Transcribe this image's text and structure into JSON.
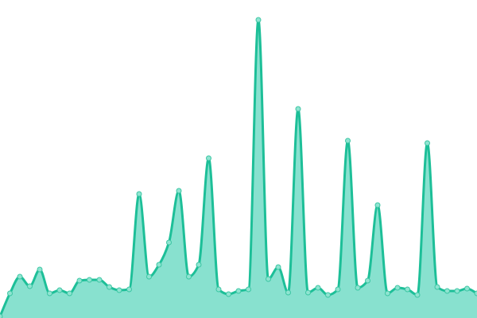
{
  "chart_data": {
    "type": "area",
    "x": [
      0,
      1,
      2,
      3,
      4,
      5,
      6,
      7,
      8,
      9,
      10,
      11,
      12,
      13,
      14,
      15,
      16,
      17,
      18,
      19,
      20,
      21,
      22,
      23,
      24,
      25,
      26,
      27,
      28,
      29,
      30,
      31,
      32,
      33,
      34,
      35,
      36,
      37,
      38,
      39,
      40,
      41,
      42,
      43,
      44,
      45,
      46,
      47,
      48
    ],
    "values": [
      2,
      31,
      52,
      40,
      61,
      31,
      35,
      31,
      47,
      48,
      48,
      39,
      35,
      36,
      156,
      52,
      67,
      95,
      160,
      52,
      67,
      201,
      36,
      30,
      34,
      36,
      375,
      49,
      64,
      32,
      263,
      32,
      38,
      29,
      36,
      223,
      38,
      47,
      142,
      31,
      38,
      36,
      29,
      220,
      39,
      34,
      34,
      37,
      31
    ],
    "ylim": [
      0,
      400
    ],
    "grid": false,
    "axes_visible": false,
    "legend": "none",
    "colors": {
      "line": "#1dbf98",
      "fill": "#88e1cf",
      "point_fill": "#8fe4d1",
      "point_stroke": "#3cc6a3"
    }
  }
}
